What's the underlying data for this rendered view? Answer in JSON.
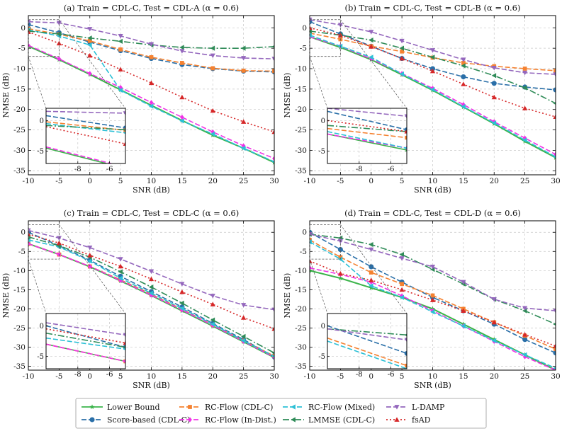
{
  "chart_data": {
    "type": "line",
    "x_ticks": [
      -10,
      -5,
      0,
      5,
      10,
      15,
      20,
      25,
      30
    ],
    "y_ticks": [
      0,
      -5,
      -10,
      -15,
      -20,
      -25,
      -30,
      -35
    ],
    "inset_x_ticks": [
      -8,
      -6
    ],
    "inset_y_ticks": [
      0,
      -5
    ],
    "xlim": [
      -10,
      30
    ],
    "ylim": [
      -36,
      3
    ],
    "inset_xlim": [
      -10,
      -5
    ],
    "inset_ylim": [
      -7,
      2
    ],
    "series_styles": [
      {
        "key": "lb",
        "name": "Lower Bound",
        "color": "#3cb44b",
        "dash": "",
        "marker": "star"
      },
      {
        "key": "sb",
        "name": "Score-based (CDL-C)",
        "color": "#2a6fa8",
        "dash": "7 3",
        "marker": "circle"
      },
      {
        "key": "rcc",
        "name": "RC-Flow (CDL-C)",
        "color": "#f58231",
        "dash": "7 3",
        "marker": "square"
      },
      {
        "key": "rci",
        "name": "RC-Flow (In-Dist.)",
        "color": "#f032e6",
        "dash": "7 3",
        "marker": "diamond"
      },
      {
        "key": "rcm",
        "name": "RC-Flow (Mixed)",
        "color": "#2cc0d6",
        "dash": "7 3",
        "marker": "tri-left"
      },
      {
        "key": "lm",
        "name": "LMMSE (CDL-C)",
        "color": "#2e8b57",
        "dash": "9 3 2 3",
        "marker": "tri-left"
      },
      {
        "key": "ld",
        "name": "L-DAMP",
        "color": "#9467bd",
        "dash": "7 3",
        "marker": "tri-down"
      },
      {
        "key": "fs",
        "name": "fsAD",
        "color": "#d62728",
        "dash": "2 3",
        "marker": "tri-up"
      }
    ],
    "panels": [
      {
        "id": "a",
        "title": "(a) Train = CDL-C, Test = CDL-A (α = 0.6)",
        "xlabel": "SNR (dB)",
        "ylabel": "NMSE (dB)",
        "x": [
          -10,
          -5,
          0,
          5,
          10,
          15,
          20,
          25,
          30
        ],
        "series": {
          "lb": [
            -4.5,
            -7.8,
            -11.4,
            -15.2,
            -19.0,
            -22.7,
            -26.3,
            -29.5,
            -33.0
          ],
          "sb": [
            0.8,
            -1.2,
            -3.5,
            -5.6,
            -7.5,
            -9.0,
            -10.0,
            -10.6,
            -10.8
          ],
          "rcc": [
            -0.2,
            -1.6,
            -3.2,
            -5.3,
            -7.2,
            -8.6,
            -9.9,
            -10.5,
            -10.6
          ],
          "rci": [
            -4.3,
            -7.6,
            -11.2,
            -14.6,
            -18.3,
            -21.9,
            -25.5,
            -28.9,
            -32.0
          ],
          "rcm": [
            -0.5,
            -2.0,
            -4.2,
            -15.3,
            -19.2,
            -22.8,
            -26.0,
            -29.5,
            -32.8
          ],
          "lm": [
            -0.8,
            -1.5,
            -2.5,
            -3.3,
            -4.2,
            -4.8,
            -5.0,
            -5.0,
            -4.6
          ],
          "ld": [
            1.5,
            1.2,
            -0.3,
            -2.0,
            -4.0,
            -5.7,
            -6.8,
            -7.4,
            -7.6
          ],
          "fs": [
            -1.0,
            -3.8,
            -6.8,
            -10.2,
            -13.5,
            -17.0,
            -20.3,
            -23.0,
            -25.5
          ]
        }
      },
      {
        "id": "b",
        "title": "(b) Train = CDL-C, Test = CDL-B (α = 0.6)",
        "xlabel": "SNR (dB)",
        "ylabel": "NMSE (dB)",
        "x": [
          -10,
          -5,
          0,
          5,
          10,
          15,
          20,
          25,
          30
        ],
        "series": {
          "lb": [
            -2.2,
            -4.8,
            -7.8,
            -11.5,
            -15.3,
            -19.4,
            -23.5,
            -27.8,
            -31.8
          ],
          "sb": [
            1.5,
            -1.5,
            -4.5,
            -7.5,
            -10.0,
            -12.0,
            -13.6,
            -14.5,
            -15.2
          ],
          "rcc": [
            -1.3,
            -2.8,
            -4.5,
            -5.8,
            -7.3,
            -8.6,
            -9.4,
            -10.0,
            -10.5
          ],
          "rci": [
            -2.2,
            -4.5,
            -7.6,
            -11.2,
            -14.8,
            -18.8,
            -23.0,
            -27.0,
            -31.0
          ],
          "rcm": [
            -1.8,
            -4.5,
            -7.2,
            -11.3,
            -15.1,
            -19.3,
            -23.3,
            -27.5,
            -31.6
          ],
          "lm": [
            -0.8,
            -1.8,
            -3.0,
            -5.0,
            -7.2,
            -9.3,
            -11.7,
            -14.7,
            -18.5
          ],
          "ld": [
            2.0,
            0.7,
            -1.0,
            -3.2,
            -5.5,
            -7.8,
            -9.8,
            -11.0,
            -11.4
          ],
          "fs": [
            0.0,
            -1.8,
            -4.6,
            -7.5,
            -10.6,
            -13.8,
            -17.0,
            -19.7,
            -21.8
          ]
        }
      },
      {
        "id": "c",
        "title": "(c) Train = CDL-C, Test = CDL-C (α = 0.6)",
        "xlabel": "SNR (dB)",
        "ylabel": "NMSE (dB)",
        "x": [
          -10,
          -5,
          0,
          5,
          10,
          15,
          20,
          25,
          30
        ],
        "series": {
          "lb": [
            -3.0,
            -5.8,
            -9.0,
            -12.7,
            -16.5,
            -20.5,
            -24.5,
            -28.6,
            -32.7
          ],
          "sb": [
            0.0,
            -3.5,
            -7.3,
            -11.5,
            -15.5,
            -19.5,
            -23.8,
            -28.0,
            -32.5
          ],
          "rcc": [
            -3.0,
            -5.8,
            -8.9,
            -12.4,
            -16.2,
            -20.1,
            -24.2,
            -28.3,
            -32.3
          ],
          "rci": [
            -3.0,
            -5.8,
            -8.9,
            -12.6,
            -16.4,
            -20.3,
            -24.3,
            -28.5,
            -32.6
          ],
          "rcm": [
            -2.0,
            -3.8,
            -7.5,
            -12.0,
            -15.9,
            -19.9,
            -24.0,
            -28.3,
            -32.4
          ],
          "lm": [
            -1.2,
            -3.5,
            -6.5,
            -10.3,
            -14.3,
            -18.5,
            -22.9,
            -27.2,
            -31.5
          ],
          "ld": [
            0.5,
            -1.5,
            -4.0,
            -7.0,
            -10.2,
            -13.5,
            -16.6,
            -19.0,
            -20.2
          ],
          "fs": [
            -0.5,
            -2.8,
            -6.0,
            -8.9,
            -12.2,
            -15.6,
            -18.8,
            -22.3,
            -25.2
          ]
        }
      },
      {
        "id": "d",
        "title": "(d) Train = CDL-C, Test = CDL-D (α = 0.6)",
        "xlabel": "SNR (dB)",
        "ylabel": "NMSE (dB)",
        "x": [
          -10,
          -5,
          0,
          5,
          10,
          15,
          20,
          25,
          30
        ],
        "series": {
          "lb": [
            -10.0,
            -12.0,
            -14.5,
            -17.0,
            -20.0,
            -24.0,
            -28.0,
            -32.0,
            -36.0
          ],
          "sb": [
            0.0,
            -4.5,
            -9.0,
            -13.0,
            -17.0,
            -20.5,
            -24.0,
            -28.0,
            -31.5
          ],
          "rcc": [
            -2.0,
            -6.5,
            -10.5,
            -13.5,
            -16.5,
            -20.0,
            -23.5,
            -27.0,
            -30.5
          ],
          "rci": [
            -9.3,
            -11.0,
            -13.0,
            -16.6,
            -20.5,
            -24.5,
            -28.5,
            -32.5,
            -36.0
          ],
          "rcm": [
            -2.5,
            -7.0,
            -14.0,
            -17.0,
            -20.8,
            -24.5,
            -28.3,
            -32.0,
            -35.5
          ],
          "lm": [
            -0.5,
            -1.5,
            -3.2,
            -5.8,
            -9.7,
            -13.5,
            -17.5,
            -20.5,
            -24.0
          ],
          "ld": [
            -0.5,
            -2.3,
            -4.5,
            -6.8,
            -9.0,
            -13.0,
            -17.5,
            -19.8,
            -20.5
          ],
          "fs": [
            -7.5,
            -10.8,
            -12.5,
            -15.0,
            -17.7,
            -20.5,
            -23.5,
            -26.7,
            -29.7
          ]
        }
      }
    ]
  }
}
